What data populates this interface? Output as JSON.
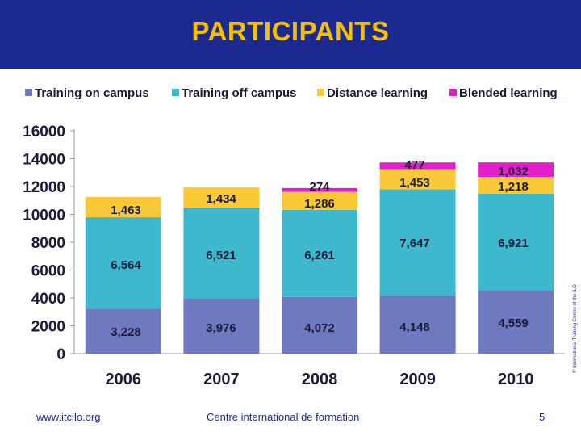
{
  "header": {
    "title": "PARTICIPANTS"
  },
  "footer": {
    "url": "www.itcilo.org",
    "centre_prefix": "Centre international de ",
    "centre_bold": "formation",
    "page_number": "5"
  },
  "copyright": "© International Training Centre of the ILO",
  "colors": {
    "header_bg": "#1c2a8f",
    "title": "#f6c000",
    "training_on_campus": "#6f79bf",
    "training_off_campus": "#3db8cd",
    "distance_learning": "#f9c93a",
    "blended_learning": "#e41ec8"
  },
  "chart_data": {
    "type": "bar",
    "stacked": true,
    "title": "PARTICIPANTS",
    "categories": [
      "2006",
      "2007",
      "2008",
      "2009",
      "2010"
    ],
    "series": [
      {
        "name": "Training on campus",
        "color": "#6f79bf",
        "values": [
          3228,
          3976,
          4072,
          4148,
          4559
        ],
        "labels": [
          "3,228",
          "3,976",
          "4,072",
          "4,148",
          "4,559"
        ]
      },
      {
        "name": "Training off campus",
        "color": "#3db8cd",
        "values": [
          6564,
          6521,
          6261,
          7647,
          6921
        ],
        "labels": [
          "6,564",
          "6,521",
          "6,261",
          "7,647",
          "6,921"
        ]
      },
      {
        "name": "Distance learning",
        "color": "#f9c93a",
        "values": [
          1463,
          1434,
          1286,
          1453,
          1218
        ],
        "labels": [
          "1,463",
          "1,434",
          "1,286",
          "1,453",
          "1,218"
        ]
      },
      {
        "name": "Blended learning",
        "color": "#e41ec8",
        "values": [
          0,
          0,
          274,
          477,
          1032
        ],
        "labels": [
          "",
          "",
          "274",
          "477",
          "1,032"
        ]
      }
    ],
    "ylim": [
      0,
      16000
    ],
    "yticks": [
      "0",
      "2000",
      "4000",
      "6000",
      "8000",
      "10000",
      "12000",
      "14000",
      "16000"
    ],
    "legend_position": "top",
    "grid": false,
    "xlabel": "",
    "ylabel": ""
  }
}
